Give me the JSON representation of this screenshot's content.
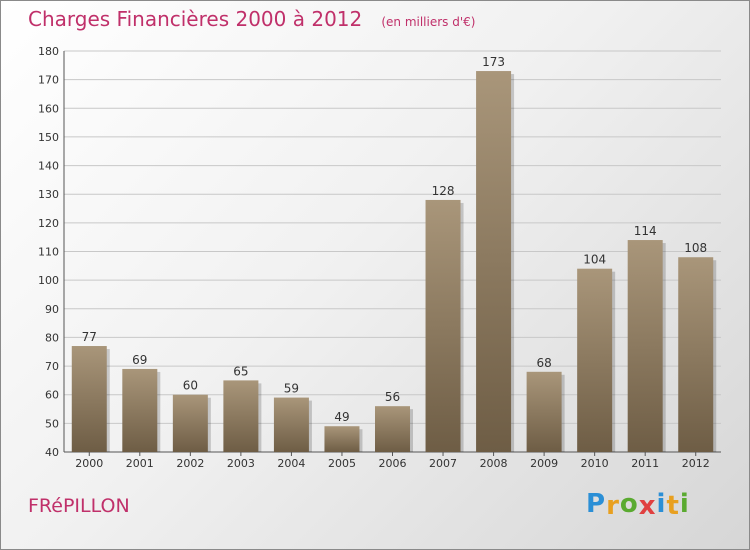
{
  "title": "Charges Financières 2000 à 2012",
  "unit_note": "(en milliers d'€)",
  "location": "FRéPILLON",
  "brand": {
    "letters": [
      "P",
      "r",
      "o",
      "x",
      "i",
      "t",
      "i"
    ],
    "colors": [
      "#2b8fd6",
      "#e8a020",
      "#5aaa30",
      "#e04040",
      "#2b8fd6",
      "#e8a020",
      "#5aaa30"
    ]
  },
  "colors": {
    "title": "#c0306a",
    "bar_top": "#a9967a",
    "bar_bottom": "#6e5d45"
  },
  "chart_data": {
    "type": "bar",
    "categories": [
      "2000",
      "2001",
      "2002",
      "2003",
      "2004",
      "2005",
      "2006",
      "2007",
      "2008",
      "2009",
      "2010",
      "2011",
      "2012"
    ],
    "values": [
      77,
      69,
      60,
      65,
      59,
      49,
      56,
      128,
      173,
      68,
      104,
      114,
      108
    ],
    "ylim": [
      40,
      180
    ],
    "yticks": [
      40,
      50,
      60,
      70,
      80,
      90,
      100,
      110,
      120,
      130,
      140,
      150,
      160,
      170,
      180
    ],
    "grid": true,
    "data_labels": true
  }
}
